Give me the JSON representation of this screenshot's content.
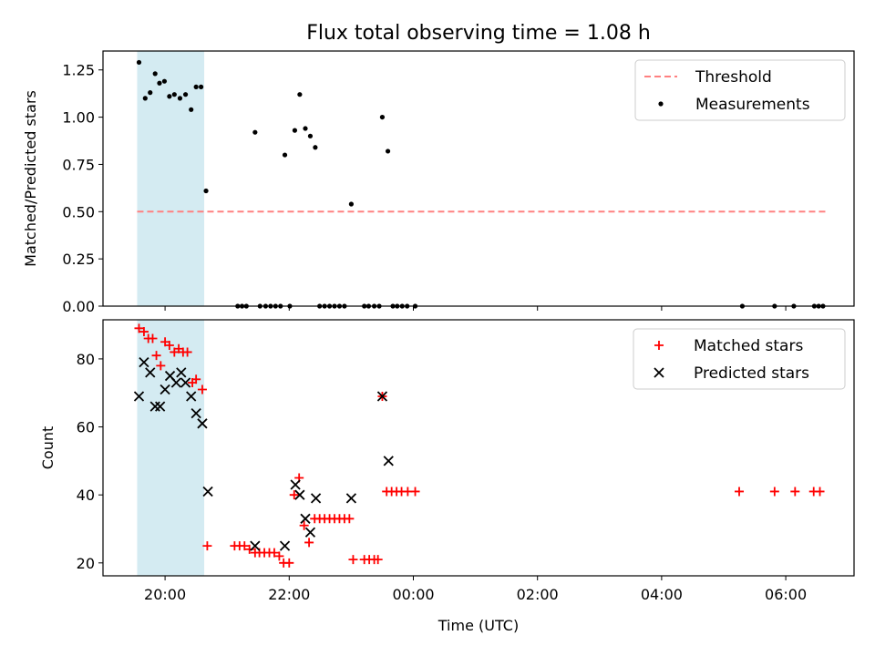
{
  "title": "Flux total observing time = 1.08 h",
  "colors": {
    "threshold": "#ff8080",
    "measurement": "#000000",
    "matched": "#ff0000",
    "predicted": "#000000",
    "highlight": "#add8e6"
  },
  "chart_data": [
    {
      "type": "scatter",
      "ylabel": "Matched/Predicted stars",
      "ylim": [
        0,
        1.35
      ],
      "xlim": [
        19.0,
        31.1
      ],
      "yticks": [
        0.0,
        0.25,
        0.5,
        0.75,
        1.0,
        1.25
      ],
      "ytick_labels": [
        "0.00",
        "0.25",
        "0.50",
        "0.75",
        "1.00",
        "1.25"
      ],
      "grid": false,
      "legend_position": "upper-right",
      "highlight_span": [
        19.55,
        20.63
      ],
      "threshold": {
        "name": "Threshold",
        "value": 0.5,
        "x_range": [
          19.55,
          30.65
        ]
      },
      "series": [
        {
          "name": "Measurements",
          "marker": "dot",
          "points": [
            [
              19.58,
              1.29
            ],
            [
              19.68,
              1.1
            ],
            [
              19.76,
              1.13
            ],
            [
              19.84,
              1.23
            ],
            [
              19.91,
              1.18
            ],
            [
              19.99,
              1.19
            ],
            [
              20.07,
              1.11
            ],
            [
              20.15,
              1.12
            ],
            [
              20.24,
              1.1
            ],
            [
              20.33,
              1.12
            ],
            [
              20.42,
              1.04
            ],
            [
              20.5,
              1.16
            ],
            [
              20.58,
              1.16
            ],
            [
              20.66,
              0.61
            ],
            [
              21.17,
              0.0
            ],
            [
              21.24,
              0.0
            ],
            [
              21.31,
              0.0
            ],
            [
              21.45,
              0.92
            ],
            [
              21.53,
              0.0
            ],
            [
              21.62,
              0.0
            ],
            [
              21.7,
              0.0
            ],
            [
              21.78,
              0.0
            ],
            [
              21.86,
              0.0
            ],
            [
              21.93,
              0.8
            ],
            [
              22.01,
              0.0
            ],
            [
              22.09,
              0.93
            ],
            [
              22.17,
              1.12
            ],
            [
              22.26,
              0.94
            ],
            [
              22.34,
              0.9
            ],
            [
              22.42,
              0.84
            ],
            [
              22.49,
              0.0
            ],
            [
              22.57,
              0.0
            ],
            [
              22.65,
              0.0
            ],
            [
              22.73,
              0.0
            ],
            [
              22.81,
              0.0
            ],
            [
              22.89,
              0.0
            ],
            [
              23.0,
              0.54
            ],
            [
              23.21,
              0.0
            ],
            [
              23.28,
              0.0
            ],
            [
              23.37,
              0.0
            ],
            [
              23.45,
              0.0
            ],
            [
              23.5,
              1.0
            ],
            [
              23.59,
              0.82
            ],
            [
              23.67,
              0.0
            ],
            [
              23.74,
              0.0
            ],
            [
              23.82,
              0.0
            ],
            [
              23.9,
              0.0
            ],
            [
              24.03,
              0.0
            ],
            [
              29.3,
              0.0
            ],
            [
              29.82,
              0.0
            ],
            [
              30.13,
              0.0
            ],
            [
              30.46,
              0.0
            ],
            [
              30.53,
              0.0
            ],
            [
              30.6,
              0.0
            ]
          ]
        }
      ]
    },
    {
      "type": "scatter",
      "ylabel": "Count",
      "xlabel": "Time (UTC)",
      "ylim": [
        16.2,
        91.5
      ],
      "xlim": [
        19.0,
        31.1
      ],
      "yticks": [
        20,
        40,
        60,
        80
      ],
      "ytick_labels": [
        "20",
        "40",
        "60",
        "80"
      ],
      "xticks": [
        20,
        22,
        24,
        26,
        28,
        30
      ],
      "xtick_labels": [
        "20:00",
        "22:00",
        "00:00",
        "02:00",
        "04:00",
        "06:00"
      ],
      "grid": false,
      "legend_position": "upper-right",
      "highlight_span": [
        19.55,
        20.63
      ],
      "series": [
        {
          "name": "Matched stars",
          "marker": "plus",
          "points": [
            [
              19.58,
              89
            ],
            [
              19.66,
              88
            ],
            [
              19.73,
              86
            ],
            [
              19.8,
              86
            ],
            [
              19.86,
              81
            ],
            [
              19.93,
              78
            ],
            [
              20.0,
              85
            ],
            [
              20.07,
              84
            ],
            [
              20.15,
              82
            ],
            [
              20.22,
              83
            ],
            [
              20.29,
              82
            ],
            [
              20.36,
              82
            ],
            [
              20.44,
              73
            ],
            [
              20.5,
              74
            ],
            [
              20.6,
              71
            ],
            [
              20.68,
              25
            ],
            [
              21.12,
              25
            ],
            [
              21.2,
              25
            ],
            [
              21.28,
              25
            ],
            [
              21.36,
              24
            ],
            [
              21.45,
              23
            ],
            [
              21.52,
              23
            ],
            [
              21.6,
              23
            ],
            [
              21.68,
              23
            ],
            [
              21.76,
              23
            ],
            [
              21.84,
              22
            ],
            [
              21.91,
              20
            ],
            [
              22.0,
              20
            ],
            [
              22.08,
              40
            ],
            [
              22.16,
              45
            ],
            [
              22.24,
              31
            ],
            [
              22.32,
              26
            ],
            [
              22.41,
              33
            ],
            [
              22.49,
              33
            ],
            [
              22.57,
              33
            ],
            [
              22.65,
              33
            ],
            [
              22.73,
              33
            ],
            [
              22.81,
              33
            ],
            [
              22.89,
              33
            ],
            [
              22.97,
              33
            ],
            [
              23.03,
              21
            ],
            [
              23.21,
              21
            ],
            [
              23.29,
              21
            ],
            [
              23.37,
              21
            ],
            [
              23.43,
              21
            ],
            [
              23.5,
              69
            ],
            [
              23.57,
              41
            ],
            [
              23.65,
              41
            ],
            [
              23.73,
              41
            ],
            [
              23.81,
              41
            ],
            [
              23.91,
              41
            ],
            [
              24.03,
              41
            ],
            [
              29.25,
              41
            ],
            [
              29.82,
              41
            ],
            [
              30.15,
              41
            ],
            [
              30.45,
              41
            ],
            [
              30.55,
              41
            ]
          ]
        },
        {
          "name": "Predicted stars",
          "marker": "x",
          "points": [
            [
              19.58,
              69
            ],
            [
              19.66,
              79
            ],
            [
              19.76,
              76
            ],
            [
              19.84,
              66
            ],
            [
              19.92,
              66
            ],
            [
              20.0,
              71
            ],
            [
              20.08,
              75
            ],
            [
              20.18,
              73
            ],
            [
              20.26,
              76
            ],
            [
              20.33,
              73
            ],
            [
              20.42,
              69
            ],
            [
              20.5,
              64
            ],
            [
              20.6,
              61
            ],
            [
              20.69,
              41
            ],
            [
              21.45,
              25
            ],
            [
              21.93,
              25
            ],
            [
              22.1,
              43
            ],
            [
              22.17,
              40
            ],
            [
              22.26,
              33
            ],
            [
              22.34,
              29
            ],
            [
              22.43,
              39
            ],
            [
              23.0,
              39
            ],
            [
              23.5,
              69
            ],
            [
              23.6,
              50
            ]
          ]
        }
      ]
    }
  ]
}
